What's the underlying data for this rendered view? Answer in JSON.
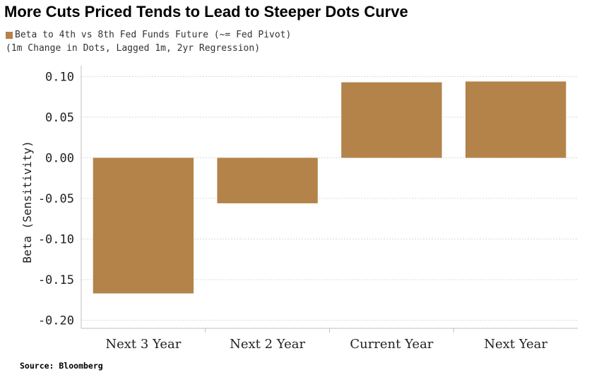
{
  "header": {
    "title": "More Cuts Priced Tends to Lead to Steeper Dots Curve",
    "legend_series": "Beta to 4th vs 8th Fed Funds Future (~= Fed Pivot)",
    "legend_note": "(1m Change in Dots, Lagged 1m, 2yr Regression)"
  },
  "footer": {
    "source": "Source: Bloomberg"
  },
  "colors": {
    "bar": "#B3834A",
    "grid": "#d9d9d9",
    "axis": "#bfbfbf"
  },
  "chart_data": {
    "type": "bar",
    "title": "More Cuts Priced Tends to Lead to Steeper Dots Curve",
    "xlabel": "",
    "ylabel": "Beta (Sensitivity)",
    "categories": [
      "Next 3 Year",
      "Next 2 Year",
      "Current Year",
      "Next Year"
    ],
    "series": [
      {
        "name": "Beta to 4th vs 8th Fed Funds Future (~= Fed Pivot)",
        "values": [
          -0.167,
          -0.056,
          0.093,
          0.094
        ]
      }
    ],
    "ylim": [
      -0.21,
      0.11
    ],
    "yticks": [
      0.1,
      0.05,
      0.0,
      -0.05,
      -0.1,
      -0.15,
      -0.2
    ],
    "ytick_labels": [
      "0.10",
      "0.05",
      "0.00",
      "-0.05",
      "-0.10",
      "-0.15",
      "-0.20"
    ],
    "grid": true,
    "legend_position": "top-left"
  }
}
